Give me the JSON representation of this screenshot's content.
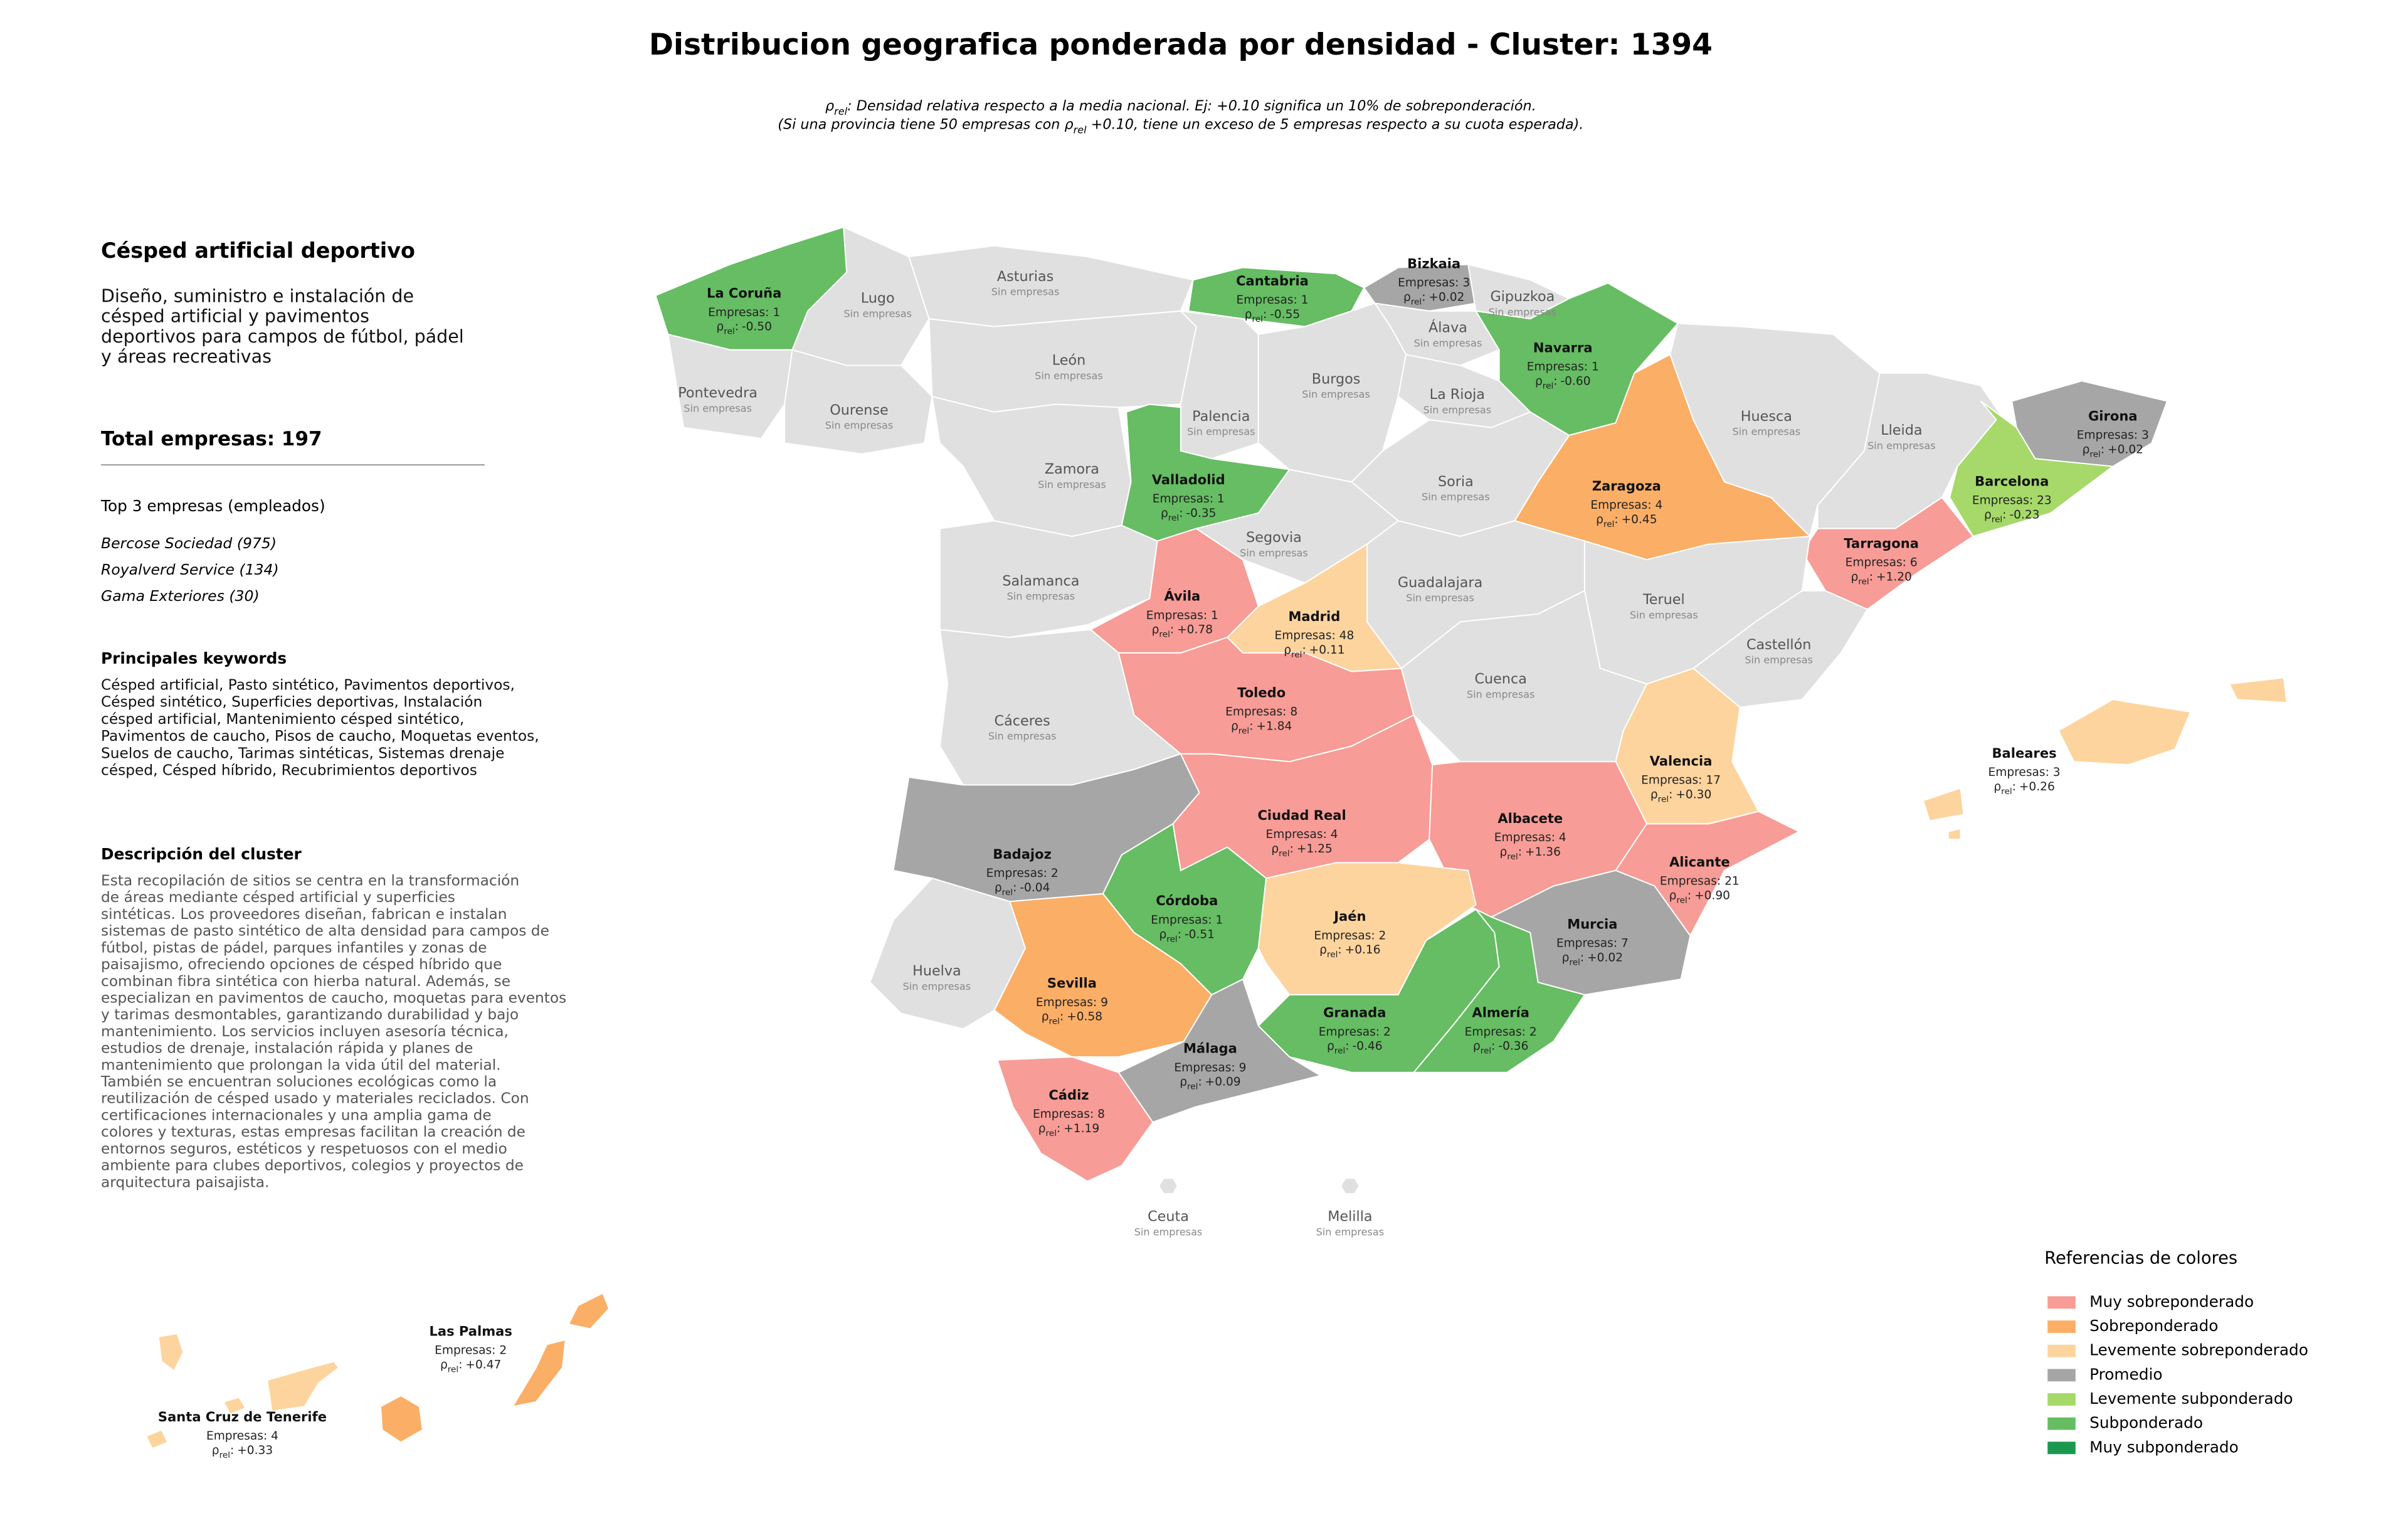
{
  "title": "Distribucion geografica ponderada por densidad - Cluster: 1394",
  "note": {
    "line1": [
      "ρ",
      "rel",
      ": Densidad relativa respecto a la media nacional. Ej: +0.10 significa un 10% de sobreponderación."
    ],
    "line2": [
      "(Si una provincia tiene 50 empresas con ",
      "ρ",
      "rel",
      " +0.10, tiene un exceso de 5 empresas respecto a su cuota esperada)."
    ]
  },
  "sidebar": {
    "heading": "Césped artificial deportivo",
    "summary": [
      "Diseño, suministro e instalación de",
      "césped artificial y pavimentos",
      "deportivos para campos de fútbol, pádel",
      "y áreas recreativas"
    ],
    "total": "Total empresas: 197",
    "top_title": "Top 3 empresas (empleados)",
    "top": [
      "Bercose Sociedad (975)",
      "Royalverd Service (134)",
      "Gama Exteriores (30)"
    ],
    "keywords_title": "Principales keywords",
    "keywords": [
      "Césped artificial, Pasto sintético, Pavimentos deportivos,",
      "Césped sintético, Superficies deportivas, Instalación",
      "césped artificial, Mantenimiento césped sintético,",
      "Pavimentos de caucho, Pisos de caucho, Moquetas eventos,",
      "Suelos de caucho, Tarimas sintéticas, Sistemas drenaje",
      "césped, Césped híbrido, Recubrimientos deportivos"
    ],
    "description_title": "Descripción del cluster",
    "description": [
      "Esta recopilación de sitios se centra en la transformación",
      "de áreas mediante césped artificial y superficies",
      "sintéticas. Los proveedores diseñan, fabrican e instalan",
      "sistemas de pasto sintético de alta densidad para campos de",
      "fútbol, pistas de pádel, parques infantiles y zonas de",
      "paisajismo, ofreciendo opciones de césped híbrido que",
      "combinan fibra sintética con hierba natural. Además, se",
      "especializan en pavimentos de caucho, moquetas para eventos",
      "y tarimas desmontables, garantizando durabilidad y bajo",
      "mantenimiento. Los servicios incluyen asesoría técnica,",
      "estudios de drenaje, instalación rápida y planes de",
      "mantenimiento que prolongan la vida útil del material.",
      "También se encuentran soluciones ecológicas como la",
      "reutilización de césped usado y materiales reciclados. Con",
      "certificaciones internacionales y una amplia gama de",
      "colores y texturas, estas empresas facilitan la creación de",
      "entornos seguros, estéticos y respetuosos con el medio",
      "ambiente para clubes deportivos, colegios y proyectos de",
      "arquitectura paisajista."
    ]
  },
  "rho_label": {
    "symbol": "ρ",
    "subscript": "rel",
    "separator": ":"
  },
  "no_data_color": "#e0e0e0",
  "legend": {
    "title": "Referencias de colores",
    "items": [
      {
        "label": "Muy sobreponderado",
        "color": "#f79c96"
      },
      {
        "label": "Sobreponderado",
        "color": "#fbae66"
      },
      {
        "label": "Levemente sobreponderado",
        "color": "#fdd49e"
      },
      {
        "label": "Promedio",
        "color": "#a6a6a6"
      },
      {
        "label": "Levemente subponderado",
        "color": "#a6d96a"
      },
      {
        "label": "Subponderado",
        "color": "#66bd63"
      },
      {
        "label": "Muy subponderado",
        "color": "#1a9850"
      }
    ]
  },
  "provinces": [
    {
      "name": "La Coruña",
      "count": "Empresas: 1",
      "rho": "-0.50",
      "category": 5
    },
    {
      "name": "Lugo",
      "status": "Sin empresas"
    },
    {
      "name": "Asturias",
      "status": "Sin empresas"
    },
    {
      "name": "Cantabria",
      "count": "Empresas: 1",
      "rho": "-0.55",
      "category": 5
    },
    {
      "name": "Bizkaia",
      "count": "Empresas: 3",
      "rho": "+0.02",
      "category": 3
    },
    {
      "name": "Gipuzkoa",
      "status": "Sin empresas"
    },
    {
      "name": "Álava",
      "status": "Sin empresas"
    },
    {
      "name": "Navarra",
      "count": "Empresas: 1",
      "rho": "-0.60",
      "category": 5
    },
    {
      "name": "Pontevedra",
      "status": "Sin empresas"
    },
    {
      "name": "Ourense",
      "status": "Sin empresas"
    },
    {
      "name": "León",
      "status": "Sin empresas"
    },
    {
      "name": "Palencia",
      "status": "Sin empresas"
    },
    {
      "name": "Burgos",
      "status": "Sin empresas"
    },
    {
      "name": "La Rioja",
      "status": "Sin empresas"
    },
    {
      "name": "Huesca",
      "status": "Sin empresas"
    },
    {
      "name": "Lleida",
      "status": "Sin empresas"
    },
    {
      "name": "Girona",
      "count": "Empresas: 3",
      "rho": "+0.02",
      "category": 3
    },
    {
      "name": "Barcelona",
      "count": "Empresas: 23",
      "rho": "-0.23",
      "category": 4
    },
    {
      "name": "Zaragoza",
      "count": "Empresas: 4",
      "rho": "+0.45",
      "category": 1
    },
    {
      "name": "Zamora",
      "status": "Sin empresas"
    },
    {
      "name": "Valladolid",
      "count": "Empresas: 1",
      "rho": "-0.35",
      "category": 5
    },
    {
      "name": "Soria",
      "status": "Sin empresas"
    },
    {
      "name": "Segovia",
      "status": "Sin empresas"
    },
    {
      "name": "Tarragona",
      "count": "Empresas: 6",
      "rho": "+1.20",
      "category": 0
    },
    {
      "name": "Salamanca",
      "status": "Sin empresas"
    },
    {
      "name": "Ávila",
      "count": "Empresas: 1",
      "rho": "+0.78",
      "category": 0
    },
    {
      "name": "Madrid",
      "count": "Empresas: 48",
      "rho": "+0.11",
      "category": 2
    },
    {
      "name": "Guadalajara",
      "status": "Sin empresas"
    },
    {
      "name": "Teruel",
      "status": "Sin empresas"
    },
    {
      "name": "Castellón",
      "status": "Sin empresas"
    },
    {
      "name": "Cuenca",
      "status": "Sin empresas"
    },
    {
      "name": "Cáceres",
      "status": "Sin empresas"
    },
    {
      "name": "Toledo",
      "count": "Empresas: 8",
      "rho": "+1.84",
      "category": 0
    },
    {
      "name": "Valencia",
      "count": "Empresas: 17",
      "rho": "+0.30",
      "category": 2
    },
    {
      "name": "Baleares",
      "count": "Empresas: 3",
      "rho": "+0.26",
      "category": 2
    },
    {
      "name": "Badajoz",
      "count": "Empresas: 2",
      "rho": "-0.04",
      "category": 3
    },
    {
      "name": "Ciudad Real",
      "count": "Empresas: 4",
      "rho": "+1.25",
      "category": 0
    },
    {
      "name": "Albacete",
      "count": "Empresas: 4",
      "rho": "+1.36",
      "category": 0
    },
    {
      "name": "Alicante",
      "count": "Empresas: 21",
      "rho": "+0.90",
      "category": 0
    },
    {
      "name": "Córdoba",
      "count": "Empresas: 1",
      "rho": "-0.51",
      "category": 5
    },
    {
      "name": "Jaén",
      "count": "Empresas: 2",
      "rho": "+0.16",
      "category": 2
    },
    {
      "name": "Huelva",
      "status": "Sin empresas"
    },
    {
      "name": "Murcia",
      "count": "Empresas: 7",
      "rho": "+0.02",
      "category": 3
    },
    {
      "name": "Sevilla",
      "count": "Empresas: 9",
      "rho": "+0.58",
      "category": 1
    },
    {
      "name": "Granada",
      "count": "Empresas: 2",
      "rho": "-0.46",
      "category": 5
    },
    {
      "name": "Almería",
      "count": "Empresas: 2",
      "rho": "-0.36",
      "category": 5
    },
    {
      "name": "Málaga",
      "count": "Empresas: 9",
      "rho": "+0.09",
      "category": 3
    },
    {
      "name": "Cádiz",
      "count": "Empresas: 8",
      "rho": "+1.19",
      "category": 0
    },
    {
      "name": "Ceuta",
      "status": "Sin empresas"
    },
    {
      "name": "Melilla",
      "status": "Sin empresas"
    },
    {
      "name": "Las Palmas",
      "count": "Empresas: 2",
      "rho": "+0.47",
      "category": 1
    },
    {
      "name": "Santa Cruz de Tenerife",
      "count": "Empresas: 4",
      "rho": "+0.33",
      "category": 2
    }
  ]
}
